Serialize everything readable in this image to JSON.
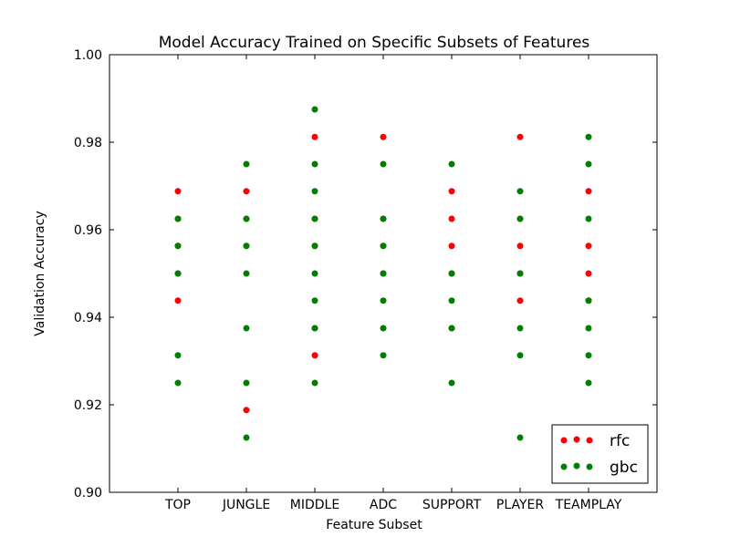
{
  "chart_data": {
    "type": "scatter",
    "title": "Model Accuracy Trained on Specific Subsets of Features",
    "xlabel": "Feature Subset",
    "ylabel": "Validation Accuracy",
    "ylim": [
      0.9,
      1.0
    ],
    "yticks": [
      0.9,
      0.92,
      0.94,
      0.96,
      0.98,
      1.0
    ],
    "ytick_labels": [
      "0.90",
      "0.92",
      "0.94",
      "0.96",
      "0.98",
      "1.00"
    ],
    "categories": [
      "TOP",
      "JUNGLE",
      "MIDDLE",
      "ADC",
      "SUPPORT",
      "PLAYER",
      "TEAMPLAY"
    ],
    "xlim": [
      -1,
      7
    ],
    "legend_position": "lower-right",
    "series": [
      {
        "name": "rfc",
        "color": "#ff0000",
        "points": [
          [
            0,
            0.9688
          ],
          [
            0,
            0.9625
          ],
          [
            0,
            0.9563
          ],
          [
            0,
            0.95
          ],
          [
            0,
            0.9438
          ],
          [
            1,
            0.9688
          ],
          [
            1,
            0.9625
          ],
          [
            1,
            0.9563
          ],
          [
            1,
            0.9188
          ],
          [
            2,
            0.9812
          ],
          [
            2,
            0.9625
          ],
          [
            2,
            0.9563
          ],
          [
            2,
            0.9375
          ],
          [
            2,
            0.9313
          ],
          [
            3,
            0.9812
          ],
          [
            3,
            0.9625
          ],
          [
            3,
            0.9563
          ],
          [
            3,
            0.95
          ],
          [
            4,
            0.9688
          ],
          [
            4,
            0.9625
          ],
          [
            4,
            0.9563
          ],
          [
            4,
            0.95
          ],
          [
            4,
            0.9375
          ],
          [
            5,
            0.9812
          ],
          [
            5,
            0.9625
          ],
          [
            5,
            0.9563
          ],
          [
            5,
            0.95
          ],
          [
            5,
            0.9438
          ],
          [
            6,
            0.9688
          ],
          [
            6,
            0.9563
          ],
          [
            6,
            0.95
          ],
          [
            6,
            0.9438
          ]
        ]
      },
      {
        "name": "gbc",
        "color": "#008000",
        "points": [
          [
            0,
            0.9625
          ],
          [
            0,
            0.9563
          ],
          [
            0,
            0.95
          ],
          [
            0,
            0.9313
          ],
          [
            0,
            0.925
          ],
          [
            1,
            0.975
          ],
          [
            1,
            0.9625
          ],
          [
            1,
            0.9563
          ],
          [
            1,
            0.95
          ],
          [
            1,
            0.9375
          ],
          [
            1,
            0.925
          ],
          [
            1,
            0.9125
          ],
          [
            2,
            0.9875
          ],
          [
            2,
            0.975
          ],
          [
            2,
            0.9688
          ],
          [
            2,
            0.9625
          ],
          [
            2,
            0.9563
          ],
          [
            2,
            0.95
          ],
          [
            2,
            0.9438
          ],
          [
            2,
            0.9375
          ],
          [
            2,
            0.925
          ],
          [
            3,
            0.975
          ],
          [
            3,
            0.9625
          ],
          [
            3,
            0.9563
          ],
          [
            3,
            0.95
          ],
          [
            3,
            0.9438
          ],
          [
            3,
            0.9375
          ],
          [
            3,
            0.9313
          ],
          [
            4,
            0.975
          ],
          [
            4,
            0.95
          ],
          [
            4,
            0.9438
          ],
          [
            4,
            0.9375
          ],
          [
            4,
            0.925
          ],
          [
            5,
            0.9688
          ],
          [
            5,
            0.9625
          ],
          [
            5,
            0.95
          ],
          [
            5,
            0.9375
          ],
          [
            5,
            0.9313
          ],
          [
            5,
            0.9125
          ],
          [
            6,
            0.9812
          ],
          [
            6,
            0.975
          ],
          [
            6,
            0.9625
          ],
          [
            6,
            0.9438
          ],
          [
            6,
            0.9375
          ],
          [
            6,
            0.9313
          ],
          [
            6,
            0.925
          ]
        ]
      }
    ]
  }
}
